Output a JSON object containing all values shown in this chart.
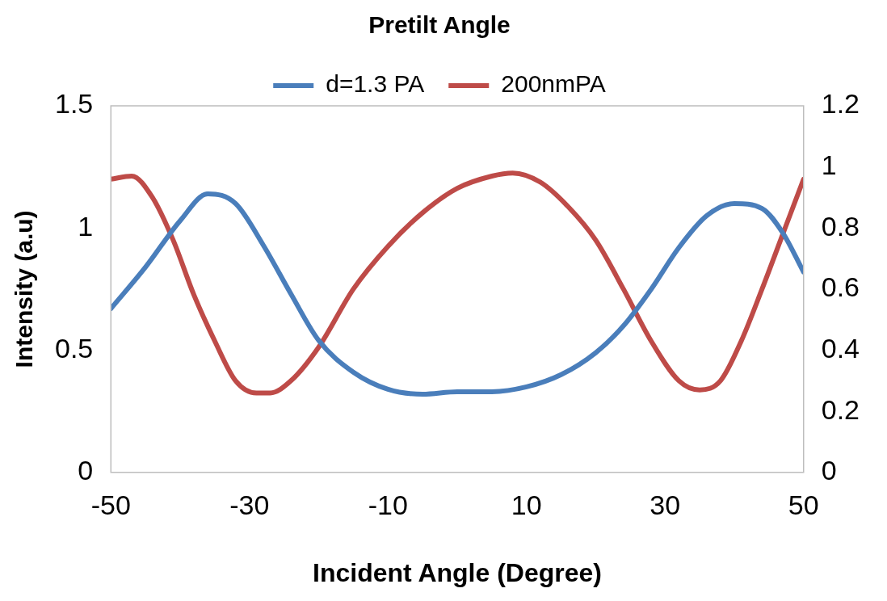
{
  "chart_data": {
    "type": "line",
    "title": "Pretilt Angle",
    "xlabel": "Incident Angle (Degree)",
    "ylabel": "Intensity (a.u)",
    "xlim": [
      -50,
      50
    ],
    "xticks": [
      -50,
      -30,
      -10,
      10,
      30,
      50
    ],
    "ylim": [
      0,
      1.5
    ],
    "yticks": [
      0,
      0.5,
      1,
      1.5
    ],
    "y2lim": [
      0,
      1.2
    ],
    "y2ticks": [
      0,
      0.2,
      0.4,
      0.6,
      0.8,
      1,
      1.2
    ],
    "grid": false,
    "legend": "top",
    "marker": "none",
    "line_style": "solid",
    "series": [
      {
        "name": "d=1.3 PA",
        "color": "#4a7ebb",
        "x": [
          -50,
          -45,
          -40,
          -36,
          -32,
          -28,
          -24,
          -20,
          -15,
          -10,
          -5,
          0,
          5,
          10,
          15,
          20,
          24,
          28,
          32,
          36,
          40,
          44,
          47,
          50
        ],
        "values": [
          0.67,
          0.84,
          1.03,
          1.14,
          1.1,
          0.93,
          0.73,
          0.54,
          0.41,
          0.34,
          0.32,
          0.33,
          0.33,
          0.35,
          0.4,
          0.49,
          0.6,
          0.75,
          0.92,
          1.05,
          1.1,
          1.08,
          0.98,
          0.82
        ]
      },
      {
        "name": "200nmPA",
        "color": "#be4b48",
        "x": [
          -50,
          -47,
          -44,
          -41,
          -38,
          -35,
          -32,
          -29,
          -27,
          -24,
          -20,
          -15,
          -10,
          -5,
          0,
          5,
          8,
          12,
          16,
          20,
          24,
          28,
          32,
          35,
          38,
          41,
          44,
          47,
          50
        ],
        "values": [
          0.96,
          0.97,
          0.9,
          0.76,
          0.58,
          0.43,
          0.3,
          0.26,
          0.26,
          0.3,
          0.41,
          0.6,
          0.74,
          0.85,
          0.93,
          0.97,
          0.98,
          0.95,
          0.87,
          0.76,
          0.6,
          0.43,
          0.3,
          0.27,
          0.3,
          0.43,
          0.6,
          0.78,
          0.96
        ],
        "axis": "y2"
      }
    ]
  }
}
